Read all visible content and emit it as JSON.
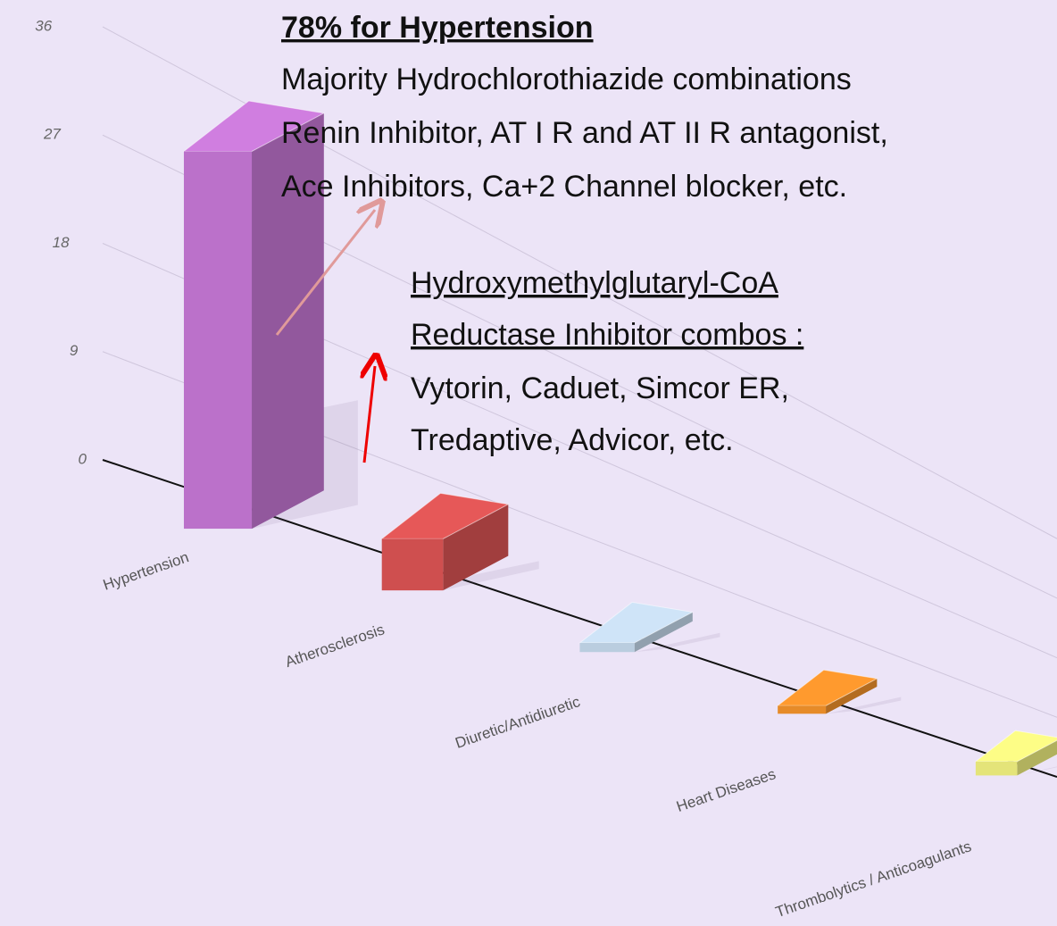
{
  "chart_data": {
    "type": "bar3d",
    "categories": [
      "Hypertension",
      "Atherosclerosis",
      "Diuretic/Antidiuretic",
      "Heart Diseases",
      "Thrombolytics / Anticoagulants"
    ],
    "values": [
      33,
      5,
      1,
      1,
      2
    ],
    "colors": [
      "#d07ee0",
      "#e65858",
      "#cfe4f8",
      "#ff9a2e",
      "#fdfd86"
    ],
    "ylim": [
      0,
      36
    ],
    "yticks": [
      0,
      9,
      18,
      27,
      36
    ],
    "grid": true,
    "annotations": [
      {
        "title": [
          "78% for Hypertension"
        ],
        "lines": [
          "Majority Hydrochlorothiazide combinations",
          "Renin Inhibitor, AT I R and AT II R antagonist,",
          "Ace Inhibitors, Ca+2 Channel blocker, etc."
        ]
      },
      {
        "title": [
          "Hydroxymethylglutaryl-CoA",
          "Reductase Inhibitor  combos :"
        ],
        "lines": [
          "Vytorin, Caduet, Simcor ER,",
          "Tredaptive, Advicor, etc."
        ]
      }
    ]
  }
}
